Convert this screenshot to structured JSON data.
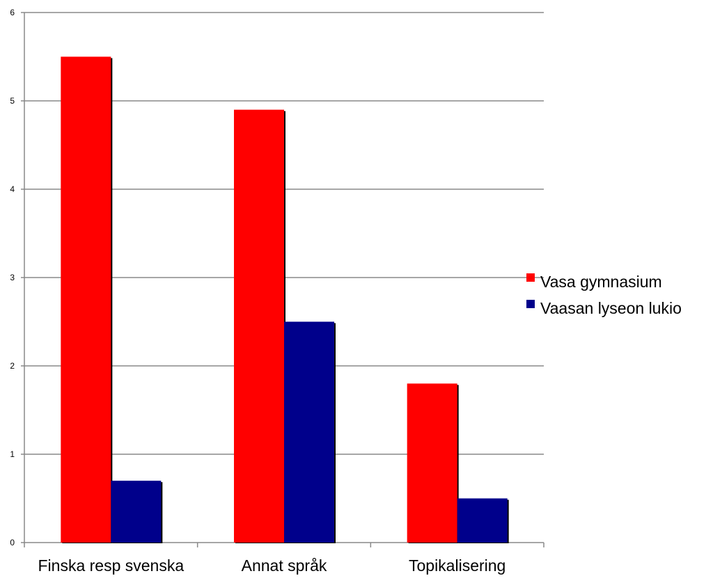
{
  "chart_data": {
    "type": "bar",
    "title": "",
    "xlabel": "",
    "ylabel": "",
    "categories": [
      "Finska resp svenska",
      "Annat språk",
      "Topikalisering"
    ],
    "series": [
      {
        "name": "Vasa gymnasium",
        "color": "#ff0000",
        "values": [
          5.5,
          4.9,
          1.8
        ]
      },
      {
        "name": "Vaasan lyseon lukio",
        "color": "#00008b",
        "values": [
          0.7,
          2.5,
          0.5
        ]
      }
    ],
    "ylim": [
      0,
      6
    ],
    "yticks": [
      0,
      1,
      2,
      3,
      4,
      5,
      6
    ],
    "grid": true,
    "legend_position": "right"
  }
}
